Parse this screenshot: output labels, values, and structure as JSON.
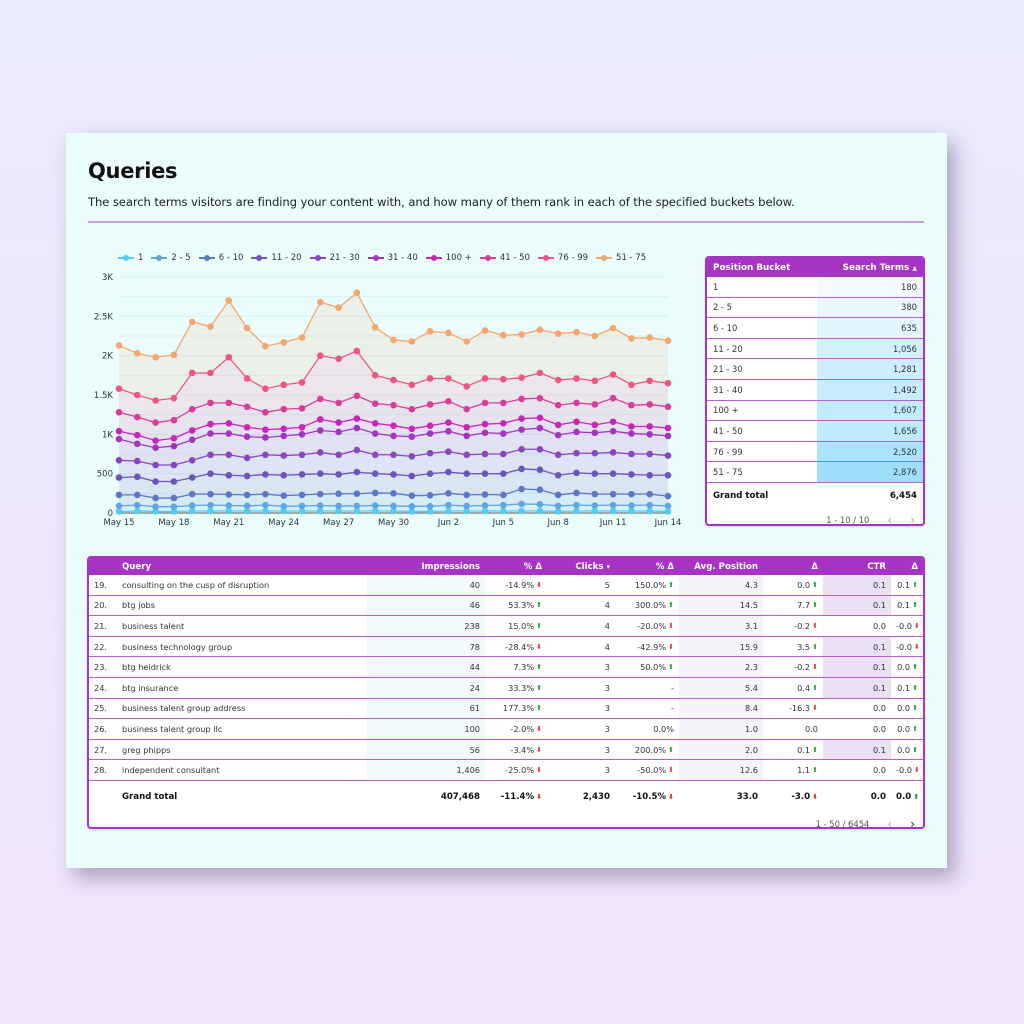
{
  "header": {
    "title": "Queries",
    "subtitle": "The search terms visitors are finding your content with,  and how many of them rank in each of the specified buckets below."
  },
  "colors": {
    "accent": "#a535c2",
    "card_bg": "#eafcfb",
    "up": "#1f9a3a",
    "down": "#e0303a"
  },
  "chart_data": {
    "type": "area",
    "stacked": true,
    "title": "",
    "xlabel": "",
    "ylabel": "",
    "ylim": [
      0,
      3000
    ],
    "yticks": [
      "0",
      "500",
      "1K",
      "1.5K",
      "2K",
      "2.5K",
      "3K"
    ],
    "xticks": [
      "May 15",
      "May 18",
      "May 21",
      "May 24",
      "May 27",
      "May 30",
      "Jun 2",
      "Jun 5",
      "Jun 8",
      "Jun 11",
      "Jun 14"
    ],
    "legend_position": "top",
    "grid": true,
    "x": [
      "May 15",
      "May 16",
      "May 17",
      "May 18",
      "May 19",
      "May 20",
      "May 21",
      "May 22",
      "May 23",
      "May 24",
      "May 25",
      "May 26",
      "May 27",
      "May 28",
      "May 29",
      "May 30",
      "May 31",
      "Jun 1",
      "Jun 2",
      "Jun 3",
      "Jun 4",
      "Jun 5",
      "Jun 6",
      "Jun 7",
      "Jun 8",
      "Jun 9",
      "Jun 10",
      "Jun 11",
      "Jun 12",
      "Jun 13",
      "Jun 14"
    ],
    "series_note": "values are cumulative stacked levels read from the chart",
    "series": [
      {
        "name": "1",
        "color": "#52cdf7",
        "values": [
          20,
          25,
          20,
          20,
          25,
          25,
          25,
          25,
          25,
          25,
          25,
          25,
          25,
          25,
          25,
          25,
          20,
          20,
          25,
          25,
          25,
          25,
          25,
          25,
          20,
          25,
          25,
          25,
          25,
          25,
          20
        ]
      },
      {
        "name": "2 - 5",
        "color": "#5fa6e0",
        "values": [
          90,
          100,
          80,
          80,
          95,
          100,
          95,
          90,
          100,
          85,
          90,
          95,
          90,
          90,
          95,
          90,
          85,
          85,
          100,
          90,
          95,
          100,
          115,
          110,
          90,
          100,
          95,
          100,
          95,
          100,
          90
        ]
      },
      {
        "name": "6 - 10",
        "color": "#5c78c5",
        "values": [
          230,
          230,
          190,
          190,
          240,
          240,
          235,
          230,
          240,
          220,
          230,
          240,
          245,
          245,
          255,
          250,
          220,
          225,
          250,
          230,
          235,
          230,
          305,
          295,
          230,
          255,
          240,
          240,
          240,
          240,
          215
        ]
      },
      {
        "name": "11 - 20",
        "color": "#6a56b8",
        "values": [
          450,
          460,
          400,
          400,
          450,
          500,
          480,
          470,
          490,
          480,
          490,
          500,
          490,
          520,
          500,
          490,
          470,
          500,
          520,
          500,
          500,
          500,
          560,
          550,
          480,
          510,
          500,
          500,
          490,
          480,
          480
        ]
      },
      {
        "name": "21 - 30",
        "color": "#8a45c0",
        "values": [
          670,
          660,
          610,
          610,
          670,
          740,
          740,
          700,
          740,
          730,
          740,
          770,
          740,
          800,
          740,
          740,
          720,
          760,
          780,
          740,
          750,
          750,
          810,
          810,
          740,
          760,
          760,
          770,
          750,
          750,
          730
        ]
      },
      {
        "name": "31 - 40",
        "color": "#a436bd",
        "values": [
          940,
          880,
          830,
          850,
          930,
          1010,
          1010,
          970,
          960,
          980,
          1000,
          1050,
          1030,
          1080,
          1010,
          980,
          970,
          1010,
          1040,
          980,
          1020,
          1010,
          1060,
          1080,
          990,
          1030,
          1020,
          1040,
          1010,
          1000,
          980
        ]
      },
      {
        "name": "100 +",
        "color": "#c826b8",
        "values": [
          1040,
          990,
          920,
          950,
          1050,
          1130,
          1140,
          1090,
          1060,
          1070,
          1090,
          1190,
          1150,
          1200,
          1140,
          1110,
          1070,
          1110,
          1150,
          1090,
          1130,
          1140,
          1200,
          1210,
          1120,
          1160,
          1120,
          1160,
          1100,
          1100,
          1080
        ]
      },
      {
        "name": "41 - 50",
        "color": "#d83d97",
        "values": [
          1280,
          1220,
          1150,
          1180,
          1320,
          1400,
          1400,
          1350,
          1280,
          1320,
          1330,
          1450,
          1400,
          1490,
          1390,
          1370,
          1320,
          1380,
          1420,
          1320,
          1400,
          1400,
          1450,
          1460,
          1370,
          1400,
          1380,
          1460,
          1370,
          1380,
          1350
        ]
      },
      {
        "name": "76 - 99",
        "color": "#ec5683",
        "values": [
          1580,
          1500,
          1430,
          1460,
          1780,
          1780,
          1980,
          1710,
          1580,
          1630,
          1660,
          2000,
          1960,
          2060,
          1750,
          1690,
          1630,
          1710,
          1710,
          1610,
          1710,
          1700,
          1720,
          1780,
          1690,
          1710,
          1680,
          1760,
          1630,
          1680,
          1650
        ]
      },
      {
        "name": "51 - 75",
        "color": "#f5a66a",
        "values": [
          2130,
          2030,
          1980,
          2010,
          2430,
          2370,
          2700,
          2350,
          2120,
          2170,
          2230,
          2680,
          2610,
          2800,
          2360,
          2200,
          2180,
          2310,
          2290,
          2180,
          2320,
          2260,
          2270,
          2330,
          2280,
          2300,
          2250,
          2350,
          2220,
          2230,
          2190
        ]
      }
    ]
  },
  "bucket_table": {
    "headers": {
      "bucket": "Position Bucket",
      "terms": "Search Terms",
      "sort_icon": "▲"
    },
    "rows": [
      {
        "bucket": "1",
        "terms": "180",
        "shade": "#f2faff"
      },
      {
        "bucket": "2 - 5",
        "terms": "380",
        "shade": "#ebf7fe"
      },
      {
        "bucket": "6 - 10",
        "terms": "635",
        "shade": "#e2f4fd"
      },
      {
        "bucket": "11 - 20",
        "terms": "1,056",
        "shade": "#d5f0fd"
      },
      {
        "bucket": "21 - 30",
        "terms": "1,281",
        "shade": "#cdeefd"
      },
      {
        "bucket": "31 - 40",
        "terms": "1,492",
        "shade": "#c7ecfd"
      },
      {
        "bucket": "100 +",
        "terms": "1,607",
        "shade": "#c2eafd"
      },
      {
        "bucket": "41 - 50",
        "terms": "1,656",
        "shade": "#bfe9fd"
      },
      {
        "bucket": "76 - 99",
        "terms": "2,520",
        "shade": "#a9e3fc"
      },
      {
        "bucket": "51 - 75",
        "terms": "2,876",
        "shade": "#9fdffb"
      }
    ],
    "total_label": "Grand total",
    "total_value": "6,454",
    "pagination": "1 - 10 / 10",
    "prev_icon": "‹",
    "next_icon": "›"
  },
  "query_table": {
    "headers": {
      "index": "",
      "query": "Query",
      "impressions": "Impressions",
      "imp_delta": "% Δ",
      "clicks": "Clicks",
      "clicks_sort_icon": "▾",
      "clicks_delta": "% Δ",
      "avg_position": "Avg. Position",
      "pos_delta": "Δ",
      "ctr": "CTR",
      "ctr_delta": "Δ"
    },
    "rows": [
      {
        "idx": "19.",
        "query": "consulting on the cusp of disruption",
        "impressions": "40",
        "imp_delta": "-14.9%",
        "imp_dir": "down",
        "clicks": "5",
        "clicks_delta": "150.0%",
        "clicks_dir": "up",
        "avg_position": "4.3",
        "pos_delta": "0.0",
        "pos_dir": "up",
        "ctr": "0.1",
        "ctr_delta": "0.1",
        "ctr_dir": "up"
      },
      {
        "idx": "20.",
        "query": "btg jobs",
        "impressions": "46",
        "imp_delta": "53.3%",
        "imp_dir": "up",
        "clicks": "4",
        "clicks_delta": "300.0%",
        "clicks_dir": "up",
        "avg_position": "14.5",
        "pos_delta": "7.7",
        "pos_dir": "up",
        "ctr": "0.1",
        "ctr_delta": "0.1",
        "ctr_dir": "up"
      },
      {
        "idx": "21.",
        "query": "business talent",
        "impressions": "238",
        "imp_delta": "15.0%",
        "imp_dir": "up",
        "clicks": "4",
        "clicks_delta": "-20.0%",
        "clicks_dir": "down",
        "avg_position": "3.1",
        "pos_delta": "-0.2",
        "pos_dir": "down",
        "ctr": "0.0",
        "ctr_delta": "-0.0",
        "ctr_dir": "down"
      },
      {
        "idx": "22.",
        "query": "business technology group",
        "impressions": "78",
        "imp_delta": "-28.4%",
        "imp_dir": "down",
        "clicks": "4",
        "clicks_delta": "-42.9%",
        "clicks_dir": "down",
        "avg_position": "15.9",
        "pos_delta": "3.5",
        "pos_dir": "up",
        "ctr": "0.1",
        "ctr_delta": "-0.0",
        "ctr_dir": "down"
      },
      {
        "idx": "23.",
        "query": "btg heidrick",
        "impressions": "44",
        "imp_delta": "7.3%",
        "imp_dir": "up",
        "clicks": "3",
        "clicks_delta": "50.0%",
        "clicks_dir": "up",
        "avg_position": "2.3",
        "pos_delta": "-0.2",
        "pos_dir": "down",
        "ctr": "0.1",
        "ctr_delta": "0.0",
        "ctr_dir": "up"
      },
      {
        "idx": "24.",
        "query": "btg insurance",
        "impressions": "24",
        "imp_delta": "33.3%",
        "imp_dir": "up",
        "clicks": "3",
        "clicks_delta": "-",
        "clicks_dir": "",
        "avg_position": "5.4",
        "pos_delta": "0.4",
        "pos_dir": "up",
        "ctr": "0.1",
        "ctr_delta": "0.1",
        "ctr_dir": "up"
      },
      {
        "idx": "25.",
        "query": "business talent group address",
        "impressions": "61",
        "imp_delta": "177.3%",
        "imp_dir": "up",
        "clicks": "3",
        "clicks_delta": "-",
        "clicks_dir": "",
        "avg_position": "8.4",
        "pos_delta": "-16.3",
        "pos_dir": "down",
        "ctr": "0.0",
        "ctr_delta": "0.0",
        "ctr_dir": "up"
      },
      {
        "idx": "26.",
        "query": "business talent group llc",
        "impressions": "100",
        "imp_delta": "-2.0%",
        "imp_dir": "down",
        "clicks": "3",
        "clicks_delta": "0.0%",
        "clicks_dir": "",
        "avg_position": "1.0",
        "pos_delta": "0.0",
        "pos_dir": "",
        "ctr": "0.0",
        "ctr_delta": "0.0",
        "ctr_dir": "up"
      },
      {
        "idx": "27.",
        "query": "greg phipps",
        "impressions": "56",
        "imp_delta": "-3.4%",
        "imp_dir": "down",
        "clicks": "3",
        "clicks_delta": "200.0%",
        "clicks_dir": "up",
        "avg_position": "2.0",
        "pos_delta": "0.1",
        "pos_dir": "up",
        "ctr": "0.1",
        "ctr_delta": "0.0",
        "ctr_dir": "up"
      },
      {
        "idx": "28.",
        "query": "independent consultant",
        "impressions": "1,406",
        "imp_delta": "-25.0%",
        "imp_dir": "down",
        "clicks": "3",
        "clicks_delta": "-50.0%",
        "clicks_dir": "down",
        "avg_position": "12.6",
        "pos_delta": "1.1",
        "pos_dir": "up",
        "ctr": "0.0",
        "ctr_delta": "-0.0",
        "ctr_dir": "down"
      }
    ],
    "total": {
      "label": "Grand total",
      "impressions": "407,468",
      "imp_delta": "-11.4%",
      "imp_dir": "down",
      "clicks": "2,430",
      "clicks_delta": "-10.5%",
      "clicks_dir": "down",
      "avg_position": "33.0",
      "pos_delta": "-3.0",
      "pos_dir": "down",
      "ctr": "0.0",
      "ctr_delta": "0.0",
      "ctr_dir": "up"
    },
    "pagination": "1 - 50 / 6454",
    "prev_icon": "‹",
    "next_icon": "›"
  }
}
